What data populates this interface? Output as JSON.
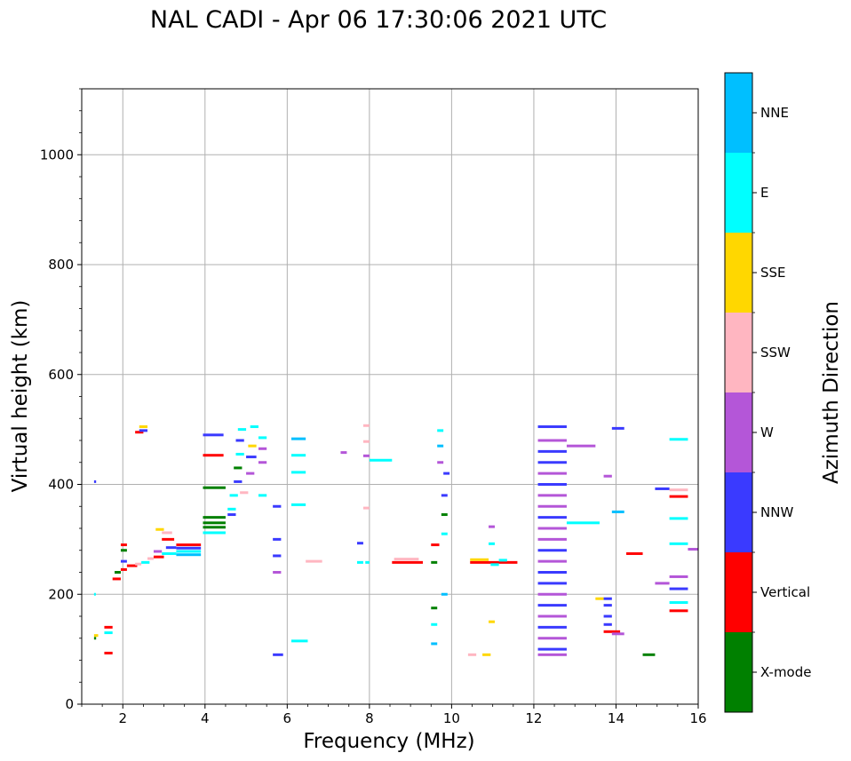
{
  "chart_data": {
    "type": "scatter",
    "title": "NAL CADI - Apr 06 17:30:06 2021 UTC",
    "xlabel": "Frequency (MHz)",
    "ylabel": "Virtual height (km)",
    "xlim": [
      1,
      16
    ],
    "ylim": [
      0,
      1120
    ],
    "xticks": [
      2,
      4,
      6,
      8,
      10,
      12,
      14,
      16
    ],
    "yticks": [
      0,
      200,
      400,
      600,
      800,
      1000
    ],
    "grid": true,
    "colorbar": {
      "label": "Azimuth Direction",
      "categories": [
        {
          "name": "X-mode",
          "color": "#008000"
        },
        {
          "name": "Vertical",
          "color": "#ff0000"
        },
        {
          "name": "NNW",
          "color": "#3a3aff"
        },
        {
          "name": "W",
          "color": "#b456d8"
        },
        {
          "name": "SSW",
          "color": "#ffb6c1"
        },
        {
          "name": "SSE",
          "color": "#ffd700"
        },
        {
          "name": "E",
          "color": "#00ffff"
        },
        {
          "name": "NNE",
          "color": "#00bfff"
        }
      ]
    },
    "bands": [
      {
        "f0": 1.3,
        "f1": 1.35,
        "h": 405,
        "c": "NNW"
      },
      {
        "f0": 1.3,
        "f1": 1.33,
        "h": 200,
        "c": "E"
      },
      {
        "f0": 1.3,
        "f1": 1.35,
        "h": 120,
        "c": "X-mode"
      },
      {
        "f0": 1.3,
        "f1": 1.4,
        "h": 125,
        "c": "SSE"
      },
      {
        "f0": 1.55,
        "f1": 1.75,
        "h": 93,
        "c": "Vertical"
      },
      {
        "f0": 1.55,
        "f1": 1.75,
        "h": 130,
        "c": "E"
      },
      {
        "f0": 1.55,
        "f1": 1.75,
        "h": 140,
        "c": "Vertical"
      },
      {
        "f0": 1.75,
        "f1": 1.95,
        "h": 228,
        "c": "Vertical"
      },
      {
        "f0": 1.8,
        "f1": 1.95,
        "h": 240,
        "c": "X-mode"
      },
      {
        "f0": 1.95,
        "f1": 2.1,
        "h": 245,
        "c": "Vertical"
      },
      {
        "f0": 1.95,
        "f1": 2.1,
        "h": 260,
        "c": "NNW"
      },
      {
        "f0": 1.95,
        "f1": 2.1,
        "h": 280,
        "c": "X-mode"
      },
      {
        "f0": 1.95,
        "f1": 2.1,
        "h": 290,
        "c": "Vertical"
      },
      {
        "f0": 2.1,
        "f1": 2.35,
        "h": 252,
        "c": "Vertical"
      },
      {
        "f0": 2.3,
        "f1": 2.45,
        "h": 255,
        "c": "SSW"
      },
      {
        "f0": 2.3,
        "f1": 2.5,
        "h": 495,
        "c": "Vertical"
      },
      {
        "f0": 2.4,
        "f1": 2.6,
        "h": 505,
        "c": "SSE"
      },
      {
        "f0": 2.4,
        "f1": 2.6,
        "h": 498,
        "c": "NNW"
      },
      {
        "f0": 2.45,
        "f1": 2.65,
        "h": 258,
        "c": "E"
      },
      {
        "f0": 2.6,
        "f1": 2.75,
        "h": 265,
        "c": "SSW"
      },
      {
        "f0": 2.75,
        "f1": 3.0,
        "h": 268,
        "c": "Vertical"
      },
      {
        "f0": 2.75,
        "f1": 2.95,
        "h": 278,
        "c": "W"
      },
      {
        "f0": 2.8,
        "f1": 3.0,
        "h": 318,
        "c": "SSE"
      },
      {
        "f0": 2.95,
        "f1": 3.2,
        "h": 312,
        "c": "SSW"
      },
      {
        "f0": 2.95,
        "f1": 3.25,
        "h": 300,
        "c": "Vertical"
      },
      {
        "f0": 2.95,
        "f1": 3.3,
        "h": 274,
        "c": "E"
      },
      {
        "f0": 3.05,
        "f1": 3.3,
        "h": 285,
        "c": "NNW"
      },
      {
        "f0": 3.3,
        "f1": 3.9,
        "h": 290,
        "c": "Vertical"
      },
      {
        "f0": 3.3,
        "f1": 3.9,
        "h": 284,
        "c": "NNW"
      },
      {
        "f0": 3.3,
        "f1": 3.9,
        "h": 278,
        "c": "E"
      },
      {
        "f0": 3.3,
        "f1": 3.9,
        "h": 272,
        "c": "NNE"
      },
      {
        "f0": 3.95,
        "f1": 4.5,
        "h": 340,
        "c": "X-mode"
      },
      {
        "f0": 3.95,
        "f1": 4.5,
        "h": 330,
        "c": "X-mode"
      },
      {
        "f0": 3.95,
        "f1": 4.5,
        "h": 322,
        "c": "X-mode"
      },
      {
        "f0": 3.95,
        "f1": 4.5,
        "h": 312,
        "c": "E"
      },
      {
        "f0": 3.95,
        "f1": 4.5,
        "h": 394,
        "c": "X-mode"
      },
      {
        "f0": 3.95,
        "f1": 4.45,
        "h": 453,
        "c": "Vertical"
      },
      {
        "f0": 3.95,
        "f1": 4.45,
        "h": 490,
        "c": "NNW"
      },
      {
        "f0": 4.55,
        "f1": 4.75,
        "h": 345,
        "c": "NNW"
      },
      {
        "f0": 4.55,
        "f1": 4.75,
        "h": 355,
        "c": "E"
      },
      {
        "f0": 4.6,
        "f1": 4.8,
        "h": 380,
        "c": "E"
      },
      {
        "f0": 4.7,
        "f1": 4.9,
        "h": 405,
        "c": "NNW"
      },
      {
        "f0": 4.7,
        "f1": 4.9,
        "h": 430,
        "c": "X-mode"
      },
      {
        "f0": 4.75,
        "f1": 4.95,
        "h": 455,
        "c": "E"
      },
      {
        "f0": 4.75,
        "f1": 4.95,
        "h": 480,
        "c": "NNW"
      },
      {
        "f0": 4.8,
        "f1": 5.0,
        "h": 500,
        "c": "E"
      },
      {
        "f0": 4.85,
        "f1": 5.05,
        "h": 385,
        "c": "SSW"
      },
      {
        "f0": 5.0,
        "f1": 5.2,
        "h": 420,
        "c": "W"
      },
      {
        "f0": 5.0,
        "f1": 5.25,
        "h": 450,
        "c": "NNW"
      },
      {
        "f0": 5.05,
        "f1": 5.25,
        "h": 470,
        "c": "SSE"
      },
      {
        "f0": 5.1,
        "f1": 5.3,
        "h": 505,
        "c": "E"
      },
      {
        "f0": 5.3,
        "f1": 5.5,
        "h": 485,
        "c": "E"
      },
      {
        "f0": 5.3,
        "f1": 5.5,
        "h": 465,
        "c": "W"
      },
      {
        "f0": 5.3,
        "f1": 5.5,
        "h": 440,
        "c": "W"
      },
      {
        "f0": 5.3,
        "f1": 5.5,
        "h": 380,
        "c": "E"
      },
      {
        "f0": 5.65,
        "f1": 5.85,
        "h": 360,
        "c": "NNW"
      },
      {
        "f0": 5.65,
        "f1": 5.85,
        "h": 300,
        "c": "NNW"
      },
      {
        "f0": 5.65,
        "f1": 5.85,
        "h": 270,
        "c": "NNW"
      },
      {
        "f0": 5.65,
        "f1": 5.85,
        "h": 240,
        "c": "W"
      },
      {
        "f0": 5.65,
        "f1": 5.9,
        "h": 90,
        "c": "NNW"
      },
      {
        "f0": 6.1,
        "f1": 6.45,
        "h": 483,
        "c": "NNE"
      },
      {
        "f0": 6.1,
        "f1": 6.45,
        "h": 453,
        "c": "E"
      },
      {
        "f0": 6.1,
        "f1": 6.45,
        "h": 422,
        "c": "E"
      },
      {
        "f0": 6.1,
        "f1": 6.45,
        "h": 363,
        "c": "E"
      },
      {
        "f0": 6.45,
        "f1": 6.85,
        "h": 260,
        "c": "SSW"
      },
      {
        "f0": 6.1,
        "f1": 6.5,
        "h": 115,
        "c": "E"
      },
      {
        "f0": 7.3,
        "f1": 7.45,
        "h": 458,
        "c": "W"
      },
      {
        "f0": 7.85,
        "f1": 8.0,
        "h": 507,
        "c": "SSW"
      },
      {
        "f0": 7.85,
        "f1": 8.0,
        "h": 478,
        "c": "SSW"
      },
      {
        "f0": 7.85,
        "f1": 8.0,
        "h": 452,
        "c": "W"
      },
      {
        "f0": 8.0,
        "f1": 8.55,
        "h": 444,
        "c": "E"
      },
      {
        "f0": 7.85,
        "f1": 8.0,
        "h": 357,
        "c": "SSW"
      },
      {
        "f0": 7.7,
        "f1": 7.85,
        "h": 293,
        "c": "NNW"
      },
      {
        "f0": 7.7,
        "f1": 7.85,
        "h": 258,
        "c": "E"
      },
      {
        "f0": 7.9,
        "f1": 8.0,
        "h": 258,
        "c": "E"
      },
      {
        "f0": 8.55,
        "f1": 9.3,
        "h": 258,
        "c": "Vertical"
      },
      {
        "f0": 8.6,
        "f1": 9.2,
        "h": 264,
        "c": "SSW"
      },
      {
        "f0": 9.5,
        "f1": 9.65,
        "h": 258,
        "c": "X-mode"
      },
      {
        "f0": 9.5,
        "f1": 9.7,
        "h": 290,
        "c": "Vertical"
      },
      {
        "f0": 9.5,
        "f1": 9.65,
        "h": 175,
        "c": "X-mode"
      },
      {
        "f0": 9.5,
        "f1": 9.65,
        "h": 145,
        "c": "E"
      },
      {
        "f0": 9.5,
        "f1": 9.65,
        "h": 110,
        "c": "NNE"
      },
      {
        "f0": 9.65,
        "f1": 9.8,
        "h": 498,
        "c": "E"
      },
      {
        "f0": 9.65,
        "f1": 9.8,
        "h": 470,
        "c": "NNE"
      },
      {
        "f0": 9.65,
        "f1": 9.8,
        "h": 440,
        "c": "W"
      },
      {
        "f0": 9.8,
        "f1": 9.95,
        "h": 420,
        "c": "NNW"
      },
      {
        "f0": 9.75,
        "f1": 9.9,
        "h": 380,
        "c": "NNW"
      },
      {
        "f0": 9.75,
        "f1": 9.9,
        "h": 345,
        "c": "X-mode"
      },
      {
        "f0": 9.75,
        "f1": 9.9,
        "h": 310,
        "c": "E"
      },
      {
        "f0": 9.75,
        "f1": 9.9,
        "h": 200,
        "c": "NNE"
      },
      {
        "f0": 10.4,
        "f1": 10.6,
        "h": 90,
        "c": "SSW"
      },
      {
        "f0": 10.75,
        "f1": 10.95,
        "h": 90,
        "c": "SSE"
      },
      {
        "f0": 10.9,
        "f1": 11.05,
        "h": 150,
        "c": "SSE"
      },
      {
        "f0": 10.9,
        "f1": 11.05,
        "h": 292,
        "c": "E"
      },
      {
        "f0": 10.9,
        "f1": 11.05,
        "h": 323,
        "c": "W"
      },
      {
        "f0": 10.45,
        "f1": 11.6,
        "h": 258,
        "c": "Vertical"
      },
      {
        "f0": 10.45,
        "f1": 10.9,
        "h": 263,
        "c": "SSE"
      },
      {
        "f0": 10.95,
        "f1": 11.15,
        "h": 254,
        "c": "E"
      },
      {
        "f0": 11.15,
        "f1": 11.35,
        "h": 262,
        "c": "E"
      },
      {
        "f0": 12.1,
        "f1": 12.8,
        "h": 505,
        "c": "NNW"
      },
      {
        "f0": 12.1,
        "f1": 12.8,
        "h": 480,
        "c": "W"
      },
      {
        "f0": 12.1,
        "f1": 12.8,
        "h": 460,
        "c": "NNW"
      },
      {
        "f0": 12.1,
        "f1": 12.8,
        "h": 440,
        "c": "NNW"
      },
      {
        "f0": 12.1,
        "f1": 12.8,
        "h": 420,
        "c": "W"
      },
      {
        "f0": 12.1,
        "f1": 12.8,
        "h": 400,
        "c": "NNW"
      },
      {
        "f0": 12.1,
        "f1": 12.8,
        "h": 380,
        "c": "W"
      },
      {
        "f0": 12.1,
        "f1": 12.8,
        "h": 360,
        "c": "W"
      },
      {
        "f0": 12.1,
        "f1": 12.8,
        "h": 340,
        "c": "NNW"
      },
      {
        "f0": 12.1,
        "f1": 12.8,
        "h": 320,
        "c": "W"
      },
      {
        "f0": 12.1,
        "f1": 12.8,
        "h": 300,
        "c": "W"
      },
      {
        "f0": 12.1,
        "f1": 12.8,
        "h": 280,
        "c": "NNW"
      },
      {
        "f0": 12.1,
        "f1": 12.8,
        "h": 260,
        "c": "W"
      },
      {
        "f0": 12.1,
        "f1": 12.8,
        "h": 240,
        "c": "NNW"
      },
      {
        "f0": 12.1,
        "f1": 12.8,
        "h": 220,
        "c": "NNW"
      },
      {
        "f0": 12.1,
        "f1": 12.8,
        "h": 200,
        "c": "W"
      },
      {
        "f0": 12.1,
        "f1": 12.8,
        "h": 180,
        "c": "NNW"
      },
      {
        "f0": 12.1,
        "f1": 12.8,
        "h": 160,
        "c": "W"
      },
      {
        "f0": 12.1,
        "f1": 12.8,
        "h": 140,
        "c": "NNW"
      },
      {
        "f0": 12.1,
        "f1": 12.8,
        "h": 120,
        "c": "W"
      },
      {
        "f0": 12.1,
        "f1": 12.8,
        "h": 100,
        "c": "NNW"
      },
      {
        "f0": 12.1,
        "f1": 12.8,
        "h": 90,
        "c": "W"
      },
      {
        "f0": 12.8,
        "f1": 13.5,
        "h": 470,
        "c": "W"
      },
      {
        "f0": 12.8,
        "f1": 13.6,
        "h": 330,
        "c": "E"
      },
      {
        "f0": 13.5,
        "f1": 13.7,
        "h": 192,
        "c": "SSE"
      },
      {
        "f0": 13.7,
        "f1": 13.9,
        "h": 415,
        "c": "W"
      },
      {
        "f0": 13.7,
        "f1": 13.9,
        "h": 192,
        "c": "NNW"
      },
      {
        "f0": 13.7,
        "f1": 13.9,
        "h": 180,
        "c": "NNW"
      },
      {
        "f0": 13.7,
        "f1": 13.9,
        "h": 160,
        "c": "NNW"
      },
      {
        "f0": 13.7,
        "f1": 13.9,
        "h": 145,
        "c": "NNW"
      },
      {
        "f0": 13.7,
        "f1": 14.1,
        "h": 132,
        "c": "Vertical"
      },
      {
        "f0": 13.9,
        "f1": 14.2,
        "h": 502,
        "c": "NNW"
      },
      {
        "f0": 13.9,
        "f1": 14.2,
        "h": 350,
        "c": "NNE"
      },
      {
        "f0": 13.9,
        "f1": 14.2,
        "h": 128,
        "c": "W"
      },
      {
        "f0": 14.25,
        "f1": 14.65,
        "h": 274,
        "c": "Vertical"
      },
      {
        "f0": 14.65,
        "f1": 14.95,
        "h": 90,
        "c": "X-mode"
      },
      {
        "f0": 14.95,
        "f1": 15.3,
        "h": 392,
        "c": "NNW"
      },
      {
        "f0": 14.95,
        "f1": 15.3,
        "h": 220,
        "c": "W"
      },
      {
        "f0": 15.3,
        "f1": 15.75,
        "h": 482,
        "c": "E"
      },
      {
        "f0": 15.3,
        "f1": 15.75,
        "h": 390,
        "c": "SSW"
      },
      {
        "f0": 15.3,
        "f1": 15.75,
        "h": 378,
        "c": "Vertical"
      },
      {
        "f0": 15.3,
        "f1": 15.75,
        "h": 338,
        "c": "E"
      },
      {
        "f0": 15.3,
        "f1": 15.75,
        "h": 292,
        "c": "E"
      },
      {
        "f0": 15.3,
        "f1": 15.75,
        "h": 232,
        "c": "W"
      },
      {
        "f0": 15.3,
        "f1": 15.75,
        "h": 210,
        "c": "NNW"
      },
      {
        "f0": 15.3,
        "f1": 15.75,
        "h": 185,
        "c": "E"
      },
      {
        "f0": 15.3,
        "f1": 15.75,
        "h": 170,
        "c": "Vertical"
      },
      {
        "f0": 15.75,
        "f1": 16.0,
        "h": 282,
        "c": "W"
      }
    ]
  }
}
